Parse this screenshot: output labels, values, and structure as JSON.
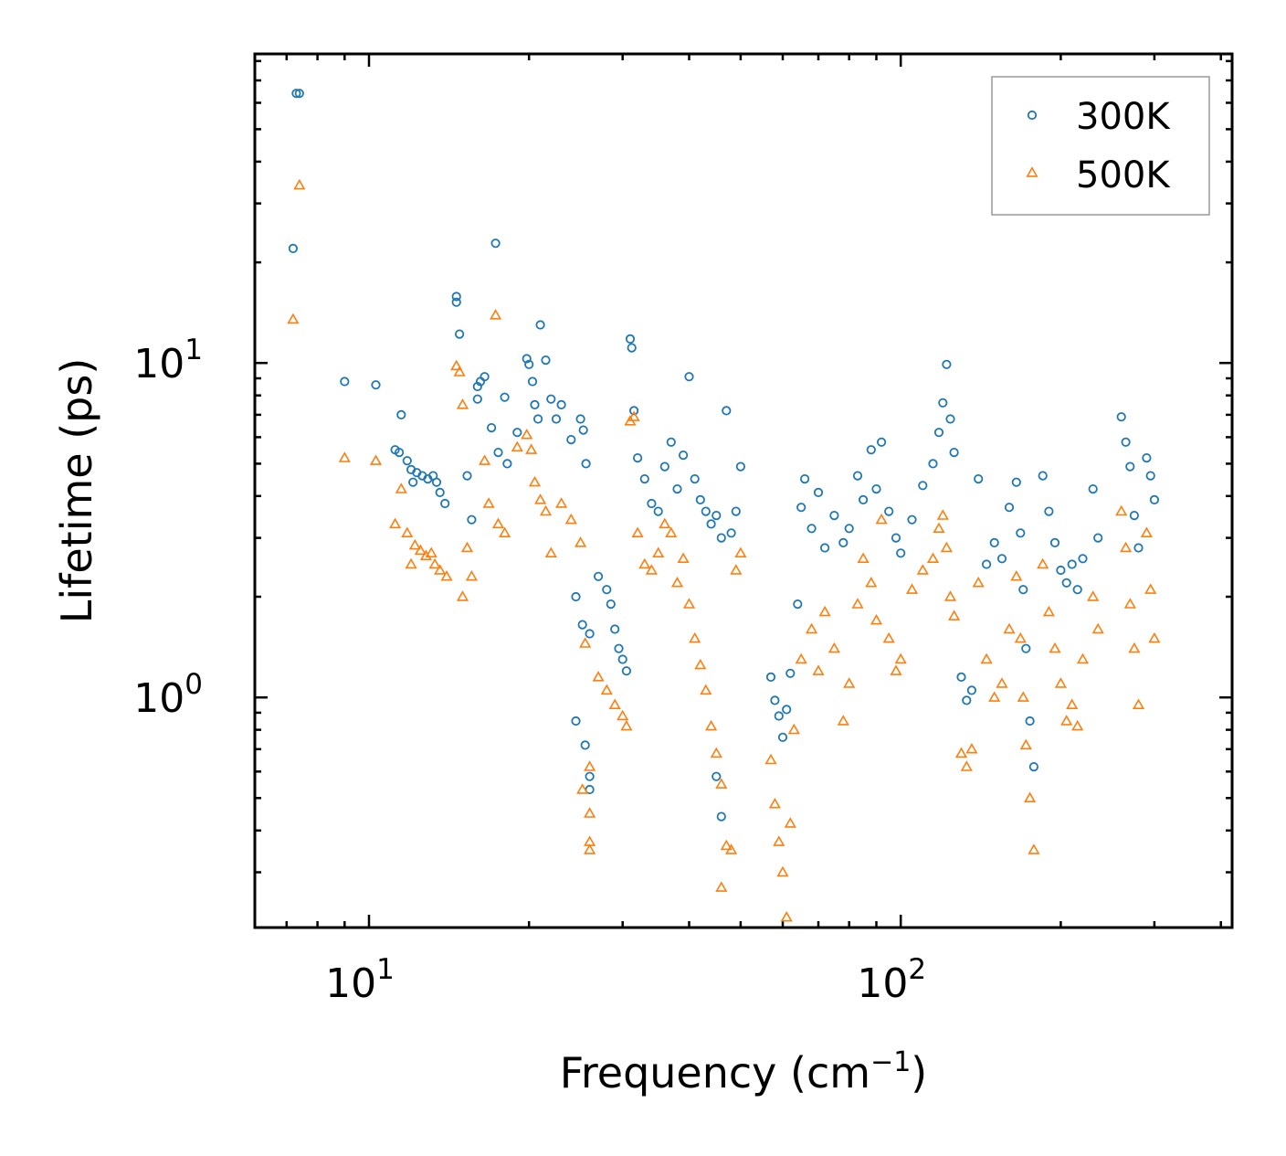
{
  "chart_data": {
    "type": "scatter",
    "xscale": "log",
    "yscale": "log",
    "xlim": [
      6.1,
      420
    ],
    "ylim": [
      0.205,
      84
    ],
    "xlabel": {
      "base": "Frequency (cm",
      "sup": "−1",
      "tail": ")"
    },
    "ylabel": "Lifetime (ps)",
    "x_ticks": [
      {
        "base": "10",
        "exp": "1",
        "value": 10
      },
      {
        "base": "10",
        "exp": "2",
        "value": 100
      }
    ],
    "y_ticks": [
      {
        "base": "10",
        "exp": "0",
        "value": 1
      },
      {
        "base": "10",
        "exp": "1",
        "value": 10
      }
    ],
    "legend": {
      "position": "upper right"
    },
    "series": [
      {
        "name": "300K",
        "marker": "circle",
        "color": "#1f77b4",
        "points": [
          [
            7.3,
            64.0
          ],
          [
            7.4,
            64.0
          ],
          [
            7.2,
            22.0
          ],
          [
            9.0,
            8.8
          ],
          [
            10.3,
            8.6
          ],
          [
            11.5,
            7.0
          ],
          [
            11.2,
            5.5
          ],
          [
            11.4,
            5.4
          ],
          [
            11.8,
            5.1
          ],
          [
            12.0,
            4.8
          ],
          [
            12.3,
            4.7
          ],
          [
            12.6,
            4.6
          ],
          [
            12.9,
            4.5
          ],
          [
            13.2,
            4.6
          ],
          [
            13.4,
            4.4
          ],
          [
            13.6,
            4.1
          ],
          [
            13.9,
            3.8
          ],
          [
            12.1,
            4.4
          ],
          [
            14.6,
            15.8
          ],
          [
            14.6,
            15.2
          ],
          [
            14.8,
            12.2
          ],
          [
            15.3,
            4.6
          ],
          [
            15.6,
            3.4
          ],
          [
            16.0,
            8.5
          ],
          [
            16.2,
            8.8
          ],
          [
            16.5,
            9.1
          ],
          [
            16.0,
            7.8
          ],
          [
            17.0,
            6.4
          ],
          [
            18.0,
            7.9
          ],
          [
            17.5,
            5.4
          ],
          [
            18.2,
            5.0
          ],
          [
            17.3,
            22.8
          ],
          [
            19.0,
            6.2
          ],
          [
            19.8,
            10.3
          ],
          [
            20.0,
            9.9
          ],
          [
            20.3,
            8.8
          ],
          [
            20.5,
            7.5
          ],
          [
            20.8,
            6.8
          ],
          [
            21.0,
            13.0
          ],
          [
            21.5,
            10.2
          ],
          [
            22.0,
            7.8
          ],
          [
            22.5,
            6.8
          ],
          [
            23.0,
            7.5
          ],
          [
            24.0,
            5.9
          ],
          [
            25.0,
            6.8
          ],
          [
            25.3,
            6.3
          ],
          [
            25.6,
            5.0
          ],
          [
            24.5,
            2.0
          ],
          [
            25.2,
            1.65
          ],
          [
            26.0,
            1.55
          ],
          [
            27.0,
            2.3
          ],
          [
            28.0,
            2.1
          ],
          [
            28.5,
            1.9
          ],
          [
            29.0,
            1.6
          ],
          [
            29.5,
            1.4
          ],
          [
            30.0,
            1.3
          ],
          [
            30.5,
            1.2
          ],
          [
            31.0,
            11.8
          ],
          [
            31.2,
            11.1
          ],
          [
            31.5,
            7.2
          ],
          [
            32.0,
            5.2
          ],
          [
            33.0,
            4.5
          ],
          [
            34.0,
            3.8
          ],
          [
            35.0,
            3.6
          ],
          [
            36.0,
            4.9
          ],
          [
            37.0,
            5.8
          ],
          [
            38.0,
            4.2
          ],
          [
            39.0,
            5.3
          ],
          [
            40.0,
            9.1
          ],
          [
            41.0,
            4.5
          ],
          [
            42.0,
            3.9
          ],
          [
            43.0,
            3.6
          ],
          [
            44.0,
            3.3
          ],
          [
            45.0,
            3.5
          ],
          [
            46.0,
            3.0
          ],
          [
            47.0,
            7.2
          ],
          [
            48.0,
            3.1
          ],
          [
            49.0,
            3.6
          ],
          [
            50.0,
            4.9
          ],
          [
            24.5,
            0.85
          ],
          [
            25.5,
            0.72
          ],
          [
            26.0,
            0.58
          ],
          [
            26.0,
            0.53
          ],
          [
            45.0,
            0.58
          ],
          [
            46.0,
            0.44
          ],
          [
            57.0,
            1.15
          ],
          [
            58.0,
            0.98
          ],
          [
            59.0,
            0.88
          ],
          [
            60.0,
            0.76
          ],
          [
            61.0,
            0.92
          ],
          [
            62.0,
            1.18
          ],
          [
            64.0,
            1.9
          ],
          [
            65.0,
            3.7
          ],
          [
            66.0,
            4.5
          ],
          [
            68.0,
            3.2
          ],
          [
            70.0,
            4.1
          ],
          [
            72.0,
            2.8
          ],
          [
            75.0,
            3.5
          ],
          [
            78.0,
            2.9
          ],
          [
            80.0,
            3.2
          ],
          [
            83.0,
            4.6
          ],
          [
            85.0,
            3.9
          ],
          [
            88.0,
            5.5
          ],
          [
            90.0,
            4.2
          ],
          [
            92.0,
            5.8
          ],
          [
            95.0,
            3.6
          ],
          [
            98.0,
            3.0
          ],
          [
            100.0,
            2.7
          ],
          [
            105.0,
            3.4
          ],
          [
            110.0,
            4.3
          ],
          [
            115.0,
            5.0
          ],
          [
            118.0,
            6.2
          ],
          [
            120.0,
            7.6
          ],
          [
            122.0,
            9.9
          ],
          [
            124.0,
            6.8
          ],
          [
            126.0,
            5.4
          ],
          [
            130.0,
            1.15
          ],
          [
            133.0,
            0.98
          ],
          [
            136.0,
            1.05
          ],
          [
            140.0,
            4.5
          ],
          [
            145.0,
            2.5
          ],
          [
            150.0,
            2.9
          ],
          [
            155.0,
            2.6
          ],
          [
            160.0,
            3.7
          ],
          [
            165.0,
            4.4
          ],
          [
            168.0,
            3.1
          ],
          [
            170.0,
            2.1
          ],
          [
            172.0,
            1.4
          ],
          [
            175.0,
            0.85
          ],
          [
            178.0,
            0.62
          ],
          [
            185.0,
            4.6
          ],
          [
            190.0,
            3.6
          ],
          [
            195.0,
            2.9
          ],
          [
            200.0,
            2.4
          ],
          [
            205.0,
            2.2
          ],
          [
            210.0,
            2.5
          ],
          [
            215.0,
            2.1
          ],
          [
            220.0,
            2.6
          ],
          [
            230.0,
            4.2
          ],
          [
            235.0,
            3.0
          ],
          [
            260.0,
            6.9
          ],
          [
            265.0,
            5.8
          ],
          [
            270.0,
            4.9
          ],
          [
            275.0,
            3.5
          ],
          [
            280.0,
            2.8
          ],
          [
            290.0,
            5.2
          ],
          [
            295.0,
            4.6
          ],
          [
            300.0,
            3.9
          ]
        ]
      },
      {
        "name": "500K",
        "marker": "triangle",
        "color": "#ff7f0e",
        "points": [
          [
            7.4,
            34.0
          ],
          [
            7.2,
            13.5
          ],
          [
            9.0,
            5.2
          ],
          [
            10.3,
            5.1
          ],
          [
            11.5,
            4.2
          ],
          [
            11.2,
            3.3
          ],
          [
            11.8,
            3.1
          ],
          [
            12.2,
            2.85
          ],
          [
            12.5,
            2.75
          ],
          [
            12.8,
            2.65
          ],
          [
            13.1,
            2.7
          ],
          [
            13.3,
            2.5
          ],
          [
            13.6,
            2.4
          ],
          [
            14.0,
            2.3
          ],
          [
            12.0,
            2.5
          ],
          [
            14.6,
            9.8
          ],
          [
            14.8,
            9.4
          ],
          [
            15.0,
            7.5
          ],
          [
            15.3,
            2.8
          ],
          [
            15.6,
            2.3
          ],
          [
            15.0,
            2.0
          ],
          [
            16.5,
            5.1
          ],
          [
            16.8,
            3.8
          ],
          [
            17.3,
            13.9
          ],
          [
            17.5,
            3.3
          ],
          [
            18.0,
            3.1
          ],
          [
            19.0,
            5.6
          ],
          [
            19.8,
            6.1
          ],
          [
            20.2,
            5.5
          ],
          [
            20.5,
            4.4
          ],
          [
            21.0,
            3.9
          ],
          [
            21.5,
            3.6
          ],
          [
            22.0,
            2.7
          ],
          [
            23.0,
            3.8
          ],
          [
            24.0,
            3.4
          ],
          [
            25.0,
            2.9
          ],
          [
            25.5,
            1.45
          ],
          [
            26.0,
            0.62
          ],
          [
            26.0,
            0.45
          ],
          [
            26.0,
            0.37
          ],
          [
            26.0,
            0.35
          ],
          [
            25.2,
            0.53
          ],
          [
            27.0,
            1.15
          ],
          [
            28.0,
            1.05
          ],
          [
            29.0,
            0.95
          ],
          [
            30.0,
            0.88
          ],
          [
            30.5,
            0.82
          ],
          [
            31.0,
            6.7
          ],
          [
            31.5,
            6.9
          ],
          [
            32.0,
            3.1
          ],
          [
            33.0,
            2.5
          ],
          [
            34.0,
            2.4
          ],
          [
            35.0,
            2.7
          ],
          [
            36.0,
            3.3
          ],
          [
            37.0,
            3.1
          ],
          [
            38.0,
            2.2
          ],
          [
            39.0,
            2.6
          ],
          [
            40.0,
            1.9
          ],
          [
            41.0,
            1.5
          ],
          [
            42.0,
            1.25
          ],
          [
            43.0,
            1.05
          ],
          [
            44.0,
            0.82
          ],
          [
            45.0,
            0.68
          ],
          [
            46.0,
            0.55
          ],
          [
            47.0,
            0.36
          ],
          [
            48.0,
            0.35
          ],
          [
            46.0,
            0.27
          ],
          [
            49.0,
            2.4
          ],
          [
            50.0,
            2.7
          ],
          [
            57.0,
            0.65
          ],
          [
            58.0,
            0.48
          ],
          [
            59.0,
            0.37
          ],
          [
            60.0,
            0.3
          ],
          [
            61.0,
            0.22
          ],
          [
            62.0,
            0.42
          ],
          [
            63.0,
            0.8
          ],
          [
            65.0,
            1.3
          ],
          [
            68.0,
            1.6
          ],
          [
            70.0,
            1.2
          ],
          [
            72.0,
            1.8
          ],
          [
            75.0,
            1.4
          ],
          [
            78.0,
            0.85
          ],
          [
            80.0,
            1.1
          ],
          [
            83.0,
            1.9
          ],
          [
            85.0,
            2.6
          ],
          [
            88.0,
            2.2
          ],
          [
            90.0,
            1.7
          ],
          [
            92.0,
            3.4
          ],
          [
            95.0,
            1.5
          ],
          [
            98.0,
            1.2
          ],
          [
            100.0,
            1.3
          ],
          [
            105.0,
            2.1
          ],
          [
            110.0,
            2.4
          ],
          [
            115.0,
            2.6
          ],
          [
            118.0,
            3.2
          ],
          [
            120.0,
            3.5
          ],
          [
            122.0,
            2.8
          ],
          [
            124.0,
            2.0
          ],
          [
            126.0,
            1.75
          ],
          [
            130.0,
            0.68
          ],
          [
            133.0,
            0.62
          ],
          [
            136.0,
            0.7
          ],
          [
            140.0,
            2.2
          ],
          [
            145.0,
            1.3
          ],
          [
            150.0,
            1.0
          ],
          [
            155.0,
            1.1
          ],
          [
            160.0,
            1.6
          ],
          [
            165.0,
            2.3
          ],
          [
            168.0,
            1.5
          ],
          [
            170.0,
            1.0
          ],
          [
            172.0,
            0.72
          ],
          [
            175.0,
            0.5
          ],
          [
            178.0,
            0.35
          ],
          [
            185.0,
            2.5
          ],
          [
            190.0,
            1.8
          ],
          [
            195.0,
            1.4
          ],
          [
            200.0,
            1.1
          ],
          [
            205.0,
            0.85
          ],
          [
            210.0,
            0.95
          ],
          [
            215.0,
            0.82
          ],
          [
            220.0,
            1.3
          ],
          [
            230.0,
            2.0
          ],
          [
            235.0,
            1.6
          ],
          [
            260.0,
            3.6
          ],
          [
            265.0,
            2.8
          ],
          [
            270.0,
            1.9
          ],
          [
            275.0,
            1.4
          ],
          [
            280.0,
            0.95
          ],
          [
            290.0,
            3.1
          ],
          [
            295.0,
            2.1
          ],
          [
            300.0,
            1.5
          ]
        ]
      }
    ]
  }
}
